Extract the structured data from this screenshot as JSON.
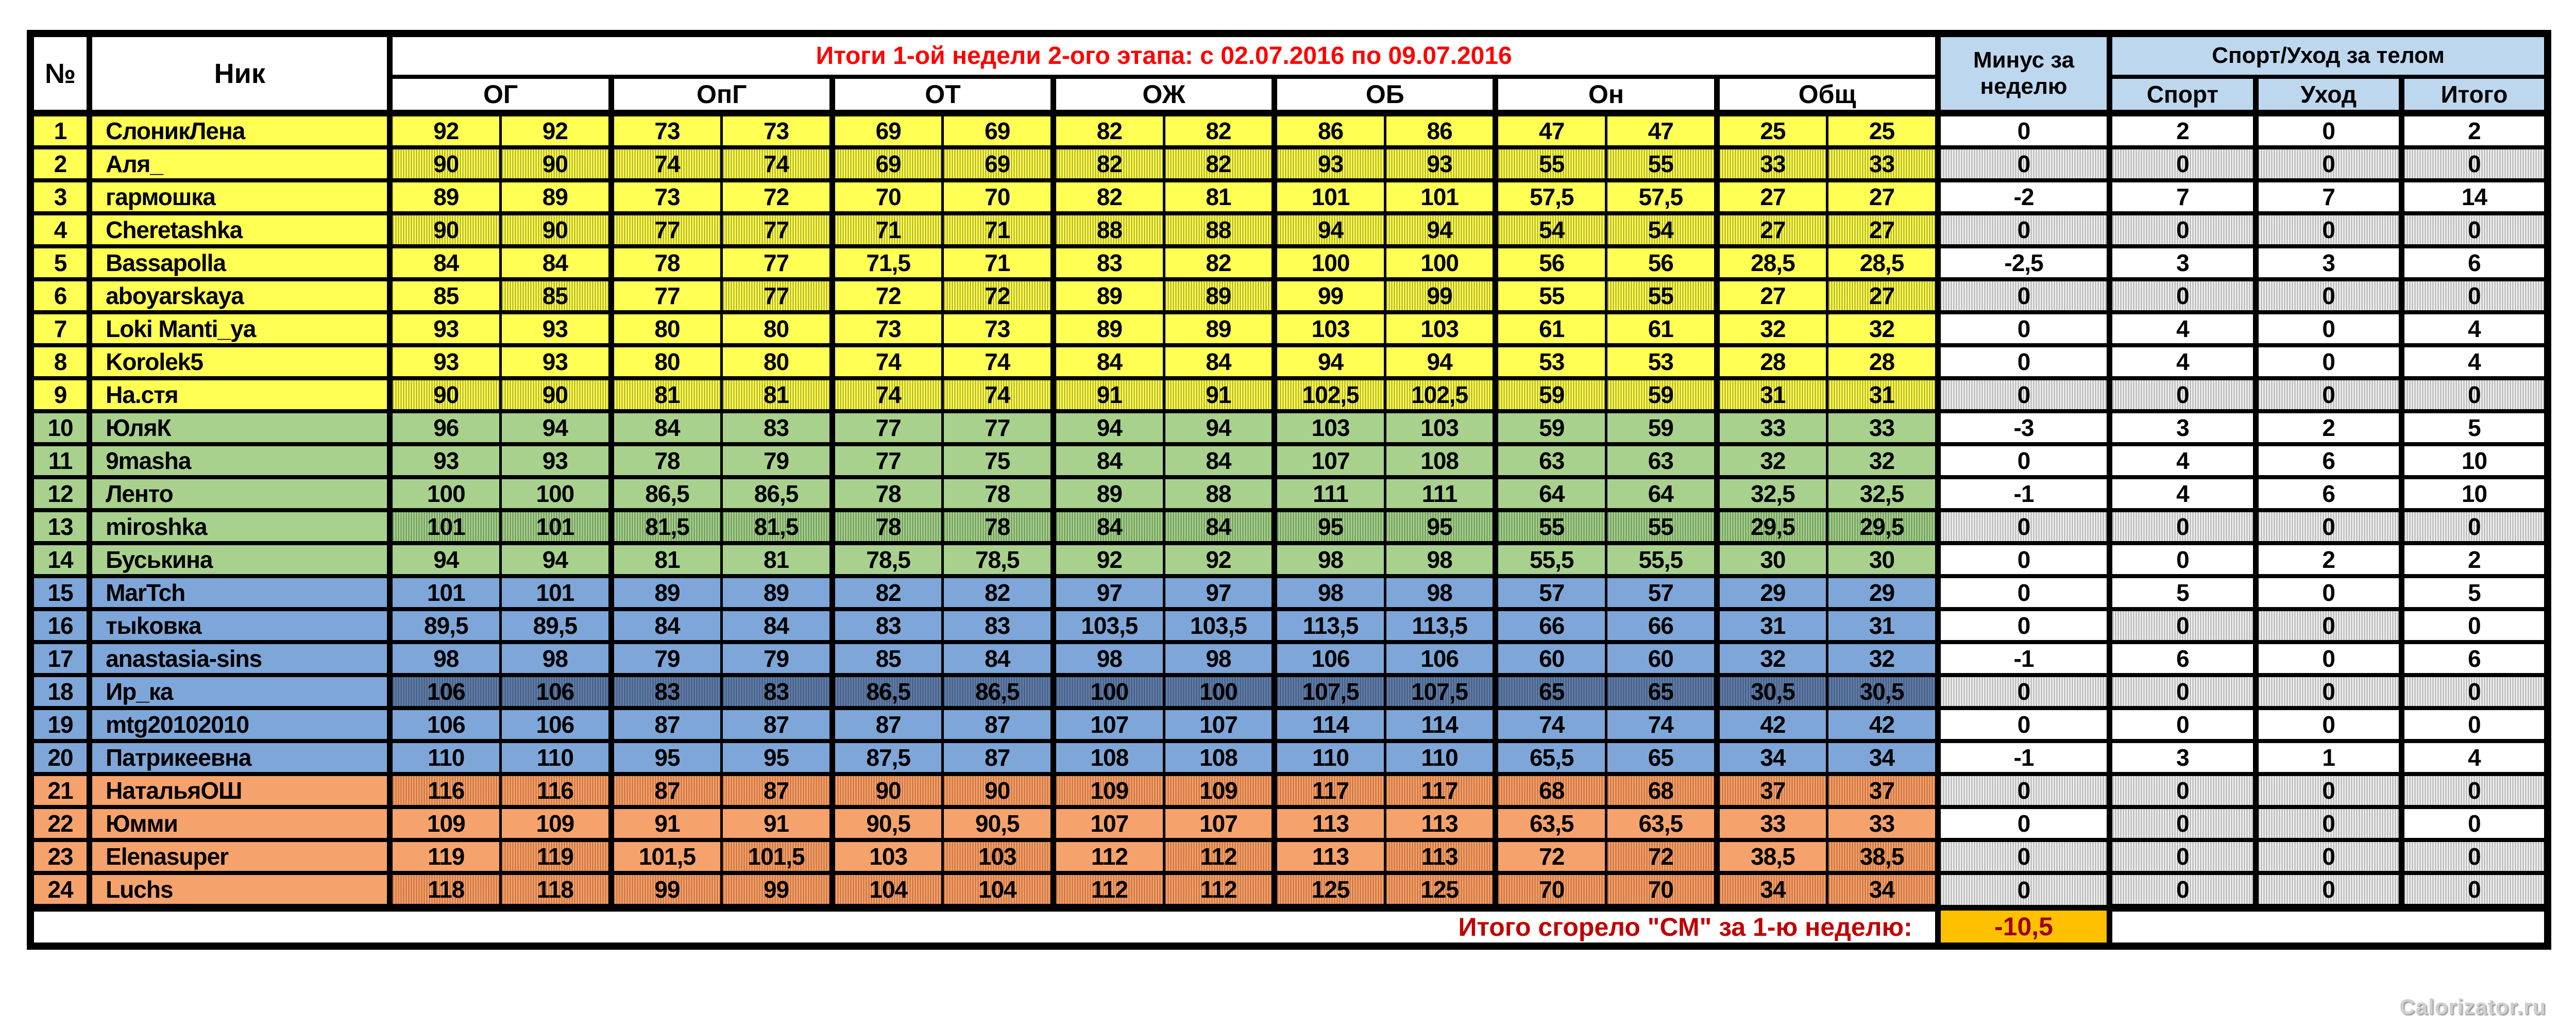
{
  "header": {
    "num_label": "№",
    "nick_label": "Ник",
    "title": "Итоги 1-ой недели 2-ого этапа: с 02.07.2016 по 09.07.2016",
    "group_labels": [
      "ОГ",
      "ОпГ",
      "ОТ",
      "ОЖ",
      "ОБ",
      "Он",
      "Общ"
    ],
    "minus_label": "Минус за неделю",
    "sport_group_label": "Спорт/Уход за телом",
    "sport_sub_labels": [
      "Спорт",
      "Уход",
      "Итого"
    ]
  },
  "footer": {
    "total_label": "Итого сгорело \"СМ\" за 1-ю неделю:",
    "total_value": "-10,5"
  },
  "watermark": "Calorizator.ru",
  "colors": {
    "band_yellow": "#FFFF54",
    "band_green": "#A9D18E",
    "band_blue": "#7EA6D8",
    "band_blue_dark": "#647FA6",
    "band_orange": "#F5A26C",
    "header_blue": "#BDD7EE",
    "gray_cell": "#C9C9C9",
    "gold_cell": "#FFC000",
    "title_red": "#FF0000",
    "footer_label_red": "#C00000"
  },
  "rows": [
    {
      "n": "1",
      "nick": "СлоникЛена",
      "band": "yellow",
      "shade": "none",
      "values": [
        "92",
        "92",
        "73",
        "73",
        "69",
        "69",
        "82",
        "82",
        "86",
        "86",
        "47",
        "47",
        "25",
        "25"
      ],
      "right": [
        "0",
        "2",
        "0",
        "2"
      ],
      "right_shade": [
        false,
        false,
        false,
        false
      ]
    },
    {
      "n": "2",
      "nick": "Аля_",
      "band": "yellow",
      "shade": "all",
      "values": [
        "90",
        "90",
        "74",
        "74",
        "69",
        "69",
        "82",
        "82",
        "93",
        "93",
        "55",
        "55",
        "33",
        "33"
      ],
      "right": [
        "0",
        "0",
        "0",
        "0"
      ],
      "right_shade": [
        true,
        true,
        true,
        true
      ]
    },
    {
      "n": "3",
      "nick": "гармошка",
      "band": "yellow",
      "shade": "none",
      "values": [
        "89",
        "89",
        "73",
        "72",
        "70",
        "70",
        "82",
        "81",
        "101",
        "101",
        "57,5",
        "57,5",
        "27",
        "27"
      ],
      "right": [
        "-2",
        "7",
        "7",
        "14"
      ],
      "right_shade": [
        false,
        false,
        false,
        false
      ]
    },
    {
      "n": "4",
      "nick": "Cheretashka",
      "band": "yellow",
      "shade": "all",
      "values": [
        "90",
        "90",
        "77",
        "77",
        "71",
        "71",
        "88",
        "88",
        "94",
        "94",
        "54",
        "54",
        "27",
        "27"
      ],
      "right": [
        "0",
        "0",
        "0",
        "0"
      ],
      "right_shade": [
        true,
        true,
        true,
        true
      ]
    },
    {
      "n": "5",
      "nick": "Bassapolla",
      "band": "yellow",
      "shade": "none",
      "values": [
        "84",
        "84",
        "78",
        "77",
        "71,5",
        "71",
        "83",
        "82",
        "100",
        "100",
        "56",
        "56",
        "28,5",
        "28,5"
      ],
      "right": [
        "-2,5",
        "3",
        "3",
        "6"
      ],
      "right_shade": [
        false,
        false,
        false,
        false
      ]
    },
    {
      "n": "6",
      "nick": "aboyarskaya",
      "band": "yellow",
      "shade": "alt",
      "values": [
        "85",
        "85",
        "77",
        "77",
        "72",
        "72",
        "89",
        "89",
        "99",
        "99",
        "55",
        "55",
        "27",
        "27"
      ],
      "right": [
        "0",
        "0",
        "0",
        "0"
      ],
      "right_shade": [
        true,
        true,
        true,
        true
      ]
    },
    {
      "n": "7",
      "nick": "Loki Manti_ya",
      "band": "yellow",
      "shade": "none",
      "values": [
        "93",
        "93",
        "80",
        "80",
        "73",
        "73",
        "89",
        "89",
        "103",
        "103",
        "61",
        "61",
        "32",
        "32"
      ],
      "right": [
        "0",
        "4",
        "0",
        "4"
      ],
      "right_shade": [
        false,
        false,
        false,
        false
      ]
    },
    {
      "n": "8",
      "nick": "Korolek5",
      "band": "yellow",
      "shade": "none",
      "values": [
        "93",
        "93",
        "80",
        "80",
        "74",
        "74",
        "84",
        "84",
        "94",
        "94",
        "53",
        "53",
        "28",
        "28"
      ],
      "right": [
        "0",
        "4",
        "0",
        "4"
      ],
      "right_shade": [
        false,
        false,
        false,
        false
      ]
    },
    {
      "n": "9",
      "nick": "На.стя",
      "band": "yellow",
      "shade": "all",
      "values": [
        "90",
        "90",
        "81",
        "81",
        "74",
        "74",
        "91",
        "91",
        "102,5",
        "102,5",
        "59",
        "59",
        "31",
        "31"
      ],
      "right": [
        "0",
        "0",
        "0",
        "0"
      ],
      "right_shade": [
        true,
        true,
        true,
        true
      ]
    },
    {
      "n": "10",
      "nick": "ЮляК",
      "band": "green",
      "shade": "none",
      "values": [
        "96",
        "94",
        "84",
        "83",
        "77",
        "77",
        "94",
        "94",
        "103",
        "103",
        "59",
        "59",
        "33",
        "33"
      ],
      "right": [
        "-3",
        "3",
        "2",
        "5"
      ],
      "right_shade": [
        false,
        false,
        false,
        false
      ]
    },
    {
      "n": "11",
      "nick": "9masha",
      "band": "green",
      "shade": "none",
      "values": [
        "93",
        "93",
        "78",
        "79",
        "77",
        "75",
        "84",
        "84",
        "107",
        "108",
        "63",
        "63",
        "32",
        "32"
      ],
      "right": [
        "0",
        "4",
        "6",
        "10"
      ],
      "right_shade": [
        false,
        false,
        false,
        false
      ]
    },
    {
      "n": "12",
      "nick": "Ленто",
      "band": "green",
      "shade": "none",
      "values": [
        "100",
        "100",
        "86,5",
        "86,5",
        "78",
        "78",
        "89",
        "88",
        "111",
        "111",
        "64",
        "64",
        "32,5",
        "32,5"
      ],
      "right": [
        "-1",
        "4",
        "6",
        "10"
      ],
      "right_shade": [
        false,
        false,
        false,
        false
      ]
    },
    {
      "n": "13",
      "nick": "miroshka",
      "band": "green",
      "shade": "all",
      "values": [
        "101",
        "101",
        "81,5",
        "81,5",
        "78",
        "78",
        "84",
        "84",
        "95",
        "95",
        "55",
        "55",
        "29,5",
        "29,5"
      ],
      "right": [
        "0",
        "0",
        "0",
        "0"
      ],
      "right_shade": [
        true,
        true,
        true,
        true
      ]
    },
    {
      "n": "14",
      "nick": "Буськина",
      "band": "green",
      "shade": "none",
      "values": [
        "94",
        "94",
        "81",
        "81",
        "78,5",
        "78,5",
        "92",
        "92",
        "98",
        "98",
        "55,5",
        "55,5",
        "30",
        "30"
      ],
      "right": [
        "0",
        "0",
        "2",
        "2"
      ],
      "right_shade": [
        false,
        false,
        false,
        false
      ]
    },
    {
      "n": "15",
      "nick": "MarTch",
      "band": "blue",
      "shade": "none",
      "values": [
        "101",
        "101",
        "89",
        "89",
        "82",
        "82",
        "97",
        "97",
        "98",
        "98",
        "57",
        "57",
        "29",
        "29"
      ],
      "right": [
        "0",
        "5",
        "0",
        "5"
      ],
      "right_shade": [
        false,
        false,
        false,
        false
      ]
    },
    {
      "n": "16",
      "nick": "тыkовка",
      "band": "blue",
      "shade": "none",
      "values": [
        "89,5",
        "89,5",
        "84",
        "84",
        "83",
        "83",
        "103,5",
        "103,5",
        "113,5",
        "113,5",
        "66",
        "66",
        "31",
        "31"
      ],
      "right": [
        "0",
        "0",
        "0",
        "0"
      ],
      "right_shade": [
        false,
        true,
        true,
        false
      ]
    },
    {
      "n": "17",
      "nick": "anastasia-sins",
      "band": "blue",
      "shade": "none",
      "values": [
        "98",
        "98",
        "79",
        "79",
        "85",
        "84",
        "98",
        "98",
        "106",
        "106",
        "60",
        "60",
        "32",
        "32"
      ],
      "right": [
        "-1",
        "6",
        "0",
        "6"
      ],
      "right_shade": [
        false,
        false,
        false,
        false
      ]
    },
    {
      "n": "18",
      "nick": "Ир_ка",
      "band": "blue",
      "shade": "dark",
      "values": [
        "106",
        "106",
        "83",
        "83",
        "86,5",
        "86,5",
        "100",
        "100",
        "107,5",
        "107,5",
        "65",
        "65",
        "30,5",
        "30,5"
      ],
      "right": [
        "0",
        "0",
        "0",
        "0"
      ],
      "right_shade": [
        true,
        true,
        true,
        true
      ]
    },
    {
      "n": "19",
      "nick": "mtg20102010",
      "band": "blue",
      "shade": "none",
      "values": [
        "106",
        "106",
        "87",
        "87",
        "87",
        "87",
        "107",
        "107",
        "114",
        "114",
        "74",
        "74",
        "42",
        "42"
      ],
      "right": [
        "0",
        "0",
        "0",
        "0"
      ],
      "right_shade": [
        false,
        false,
        false,
        false
      ]
    },
    {
      "n": "20",
      "nick": "Патрикеевна",
      "band": "blue",
      "shade": "none",
      "values": [
        "110",
        "110",
        "95",
        "95",
        "87,5",
        "87",
        "108",
        "108",
        "110",
        "110",
        "65,5",
        "65",
        "34",
        "34"
      ],
      "right": [
        "-1",
        "3",
        "1",
        "4"
      ],
      "right_shade": [
        false,
        false,
        false,
        false
      ]
    },
    {
      "n": "21",
      "nick": "НатальяОШ",
      "band": "orange",
      "shade": "all",
      "values": [
        "116",
        "116",
        "87",
        "87",
        "90",
        "90",
        "109",
        "109",
        "117",
        "117",
        "68",
        "68",
        "37",
        "37"
      ],
      "right": [
        "0",
        "0",
        "0",
        "0"
      ],
      "right_shade": [
        true,
        true,
        true,
        true
      ]
    },
    {
      "n": "22",
      "nick": "Юмми",
      "band": "orange",
      "shade": "none",
      "values": [
        "109",
        "109",
        "91",
        "91",
        "90,5",
        "90,5",
        "107",
        "107",
        "113",
        "113",
        "63,5",
        "63,5",
        "33",
        "33"
      ],
      "right": [
        "0",
        "0",
        "0",
        "0"
      ],
      "right_shade": [
        false,
        true,
        true,
        false
      ]
    },
    {
      "n": "23",
      "nick": "Elenasuper",
      "band": "orange",
      "shade": "alt",
      "values": [
        "119",
        "119",
        "101,5",
        "101,5",
        "103",
        "103",
        "112",
        "112",
        "113",
        "113",
        "72",
        "72",
        "38,5",
        "38,5"
      ],
      "right": [
        "0",
        "0",
        "0",
        "0"
      ],
      "right_shade": [
        true,
        true,
        true,
        true
      ]
    },
    {
      "n": "24",
      "nick": "Luchs",
      "band": "orange",
      "shade": "all",
      "values": [
        "118",
        "118",
        "99",
        "99",
        "104",
        "104",
        "112",
        "112",
        "125",
        "125",
        "70",
        "70",
        "34",
        "34"
      ],
      "right": [
        "0",
        "0",
        "0",
        "0"
      ],
      "right_shade": [
        true,
        true,
        true,
        true
      ]
    }
  ]
}
